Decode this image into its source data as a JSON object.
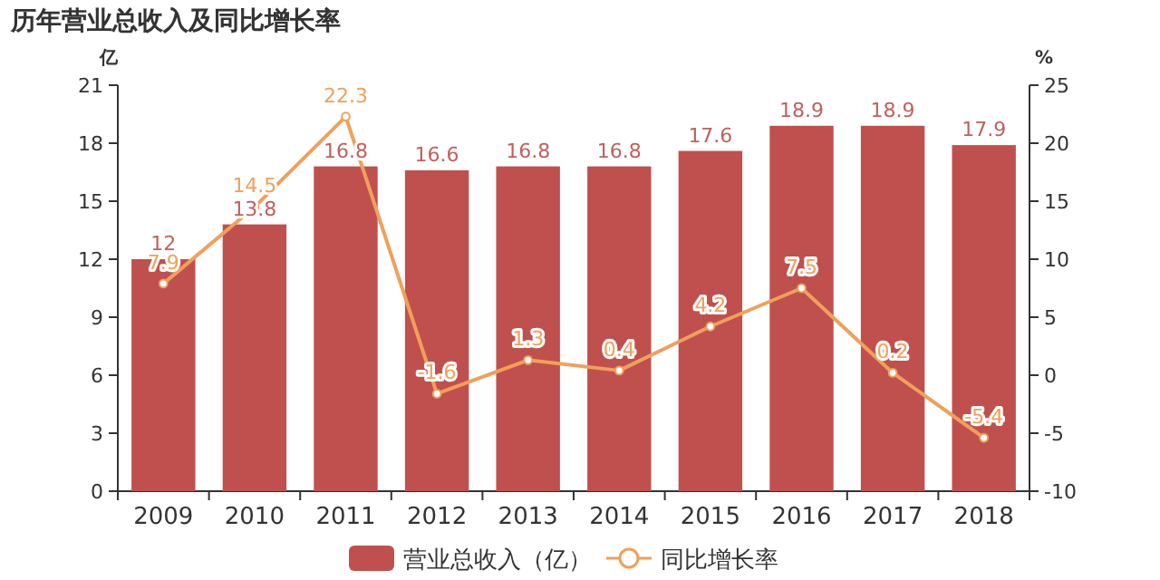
{
  "chart_data": {
    "type": "bar",
    "title": "历年营业总收入及同比增长率",
    "ylabel": "亿",
    "y2label": "%",
    "categories": [
      "2009",
      "2010",
      "2011",
      "2012",
      "2013",
      "2014",
      "2015",
      "2016",
      "2017",
      "2018"
    ],
    "series": [
      {
        "name": "营业总收入（亿）",
        "color": "#c0504d",
        "values": [
          12,
          13.8,
          16.8,
          16.6,
          16.8,
          16.8,
          17.6,
          18.9,
          18.9,
          17.9
        ]
      },
      {
        "name": "同比增长率",
        "type": "line",
        "axis": "y2",
        "color": "#f0a05a",
        "marker": "circle",
        "values": [
          7.9,
          14.5,
          22.3,
          -1.6,
          1.3,
          0.4,
          4.2,
          7.5,
          0.2,
          -5.4
        ]
      }
    ],
    "ylim": [
      0,
      21
    ],
    "yticks": [
      0,
      3,
      6,
      9,
      12,
      15,
      18,
      21
    ],
    "y2lim": [
      -10,
      25
    ],
    "y2ticks": [
      -10,
      -5,
      0,
      5,
      10,
      15,
      20,
      25
    ],
    "data_labels": true,
    "legend": "bottom",
    "grid": false
  }
}
